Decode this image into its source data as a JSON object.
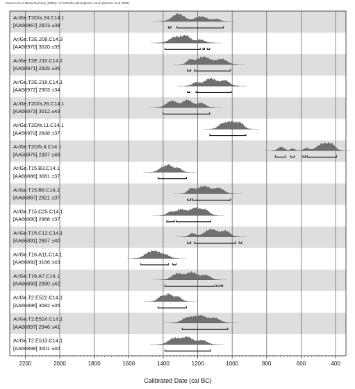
{
  "header": {
    "note": "OxCal v4.0.1 Bronk Ramsey (2006); r:5 IntCal04 atmospheric curve (Reimer et al 2004)"
  },
  "chart_data": {
    "type": "multiple-plot",
    "xlabel": "Calibrated Date (cal BC)",
    "xlim": [
      2290,
      340
    ],
    "x_direction": "decreasing",
    "x_ticks": [
      2200,
      2000,
      1800,
      1600,
      1400,
      1200,
      1000,
      800,
      600,
      400
    ],
    "grid": "vertical lines at every tick",
    "band_colors": [
      "#dedede",
      "#ffffff"
    ],
    "distribution_color": "#707070",
    "samples": [
      {
        "name": "Ar/Ge.T2D/a.24.C14.1",
        "lab": "[AA56967]",
        "date": "2973 ±38",
        "peaks": [
          [
            1312,
            34,
            1.0
          ],
          [
            1180,
            35,
            0.65
          ],
          [
            1090,
            20,
            0.3
          ]
        ],
        "ranges": [
          [
            1370,
            1355
          ],
          [
            1320,
            1050
          ]
        ]
      },
      {
        "name": "Ar/Ge.T2E.208.C14.3",
        "lab": "[AA56970]",
        "date": "3020 ±35",
        "peaks": [
          [
            1330,
            32,
            0.9
          ],
          [
            1265,
            25,
            1.0
          ],
          [
            1185,
            25,
            0.5
          ]
        ],
        "ranges": [
          [
            1390,
            1185
          ],
          [
            1170,
            1160
          ],
          [
            1145,
            1130
          ]
        ]
      },
      {
        "name": "Ar/Ge.T2E.210.C14.2",
        "lab": "[AA56971]",
        "date": "2925 ±35",
        "peaks": [
          [
            1245,
            18,
            0.55
          ],
          [
            1165,
            40,
            1.0
          ],
          [
            1060,
            30,
            0.7
          ]
        ],
        "ranges": [
          [
            1260,
            1240
          ],
          [
            1220,
            1010
          ]
        ]
      },
      {
        "name": "Ar/Ge.T2E.218.C14.1",
        "lab": "[AA56972]",
        "date": "2903 ±34",
        "peaks": [
          [
            1210,
            20,
            0.45
          ],
          [
            1125,
            35,
            1.0
          ],
          [
            1040,
            25,
            0.7
          ]
        ],
        "ranges": [
          [
            1260,
            1245
          ],
          [
            1210,
            1005
          ]
        ]
      },
      {
        "name": "Ar/Ge.T2D/a.26.C14.1",
        "lab": "[AA56973]",
        "date": "3012 ±43",
        "peaks": [
          [
            1350,
            30,
            0.9
          ],
          [
            1260,
            28,
            1.0
          ],
          [
            1180,
            25,
            0.6
          ]
        ],
        "ranges": [
          [
            1400,
            1130
          ]
        ]
      },
      {
        "name": "Ar/Ge.T2D/e.11.C14.1",
        "lab": "[AA56974]",
        "date": "2848 ±37",
        "peaks": [
          [
            1060,
            22,
            0.6
          ],
          [
            1005,
            30,
            1.0
          ],
          [
            950,
            20,
            0.7
          ]
        ],
        "ranges": [
          [
            1130,
            920
          ]
        ]
      },
      {
        "name": "Ar/Ge.T2D/b.4.C14.1",
        "lab": "[AA56975]",
        "date": "2397 ±40",
        "peaks": [
          [
            715,
            18,
            0.5
          ],
          [
            650,
            12,
            0.3
          ],
          [
            570,
            15,
            0.35
          ],
          [
            470,
            35,
            1.0
          ],
          [
            420,
            20,
            0.6
          ]
        ],
        "ranges": [
          [
            750,
            690
          ],
          [
            660,
            640
          ],
          [
            590,
            575
          ],
          [
            565,
            395
          ]
        ]
      },
      {
        "name": "Ar/Ge.T15.B3.C14.1",
        "lab": "[AA66886]",
        "date": "3081 ±37",
        "peaks": [
          [
            1405,
            22,
            0.7
          ],
          [
            1365,
            18,
            1.0
          ],
          [
            1315,
            20,
            0.7
          ]
        ],
        "ranges": [
          [
            1430,
            1265
          ]
        ]
      },
      {
        "name": "Ar/Ge.T15.B6.C14.2",
        "lab": "[AA66887]",
        "date": "2921 ±37",
        "peaks": [
          [
            1240,
            18,
            0.6
          ],
          [
            1165,
            38,
            1.0
          ],
          [
            1075,
            28,
            0.7
          ]
        ],
        "ranges": [
          [
            1260,
            1240
          ],
          [
            1230,
            1010
          ]
        ]
      },
      {
        "name": "Ar/Ge.T15.C25.C14.1",
        "lab": "[AA66890]",
        "date": "2988 ±37",
        "peaks": [
          [
            1360,
            18,
            0.4
          ],
          [
            1300,
            28,
            0.75
          ],
          [
            1210,
            35,
            1.0
          ],
          [
            1150,
            20,
            0.5
          ]
        ],
        "ranges": [
          [
            1380,
            1335
          ],
          [
            1325,
            1125
          ]
        ]
      },
      {
        "name": "Ar/Ge.T15.C12.C14.1",
        "lab": "[AA66891]",
        "date": "2897 ±40",
        "peaks": [
          [
            1230,
            18,
            0.45
          ],
          [
            1120,
            38,
            1.0
          ],
          [
            1035,
            25,
            0.7
          ]
        ],
        "ranges": [
          [
            1260,
            1240
          ],
          [
            1220,
            980
          ],
          [
            960,
            945
          ]
        ]
      },
      {
        "name": "Ar/Ge.T16.A11.C14.1",
        "lab": "[AA66892]",
        "date": "3166 ±43",
        "peaks": [
          [
            1490,
            25,
            0.7
          ],
          [
            1445,
            25,
            1.0
          ],
          [
            1390,
            25,
            0.6
          ]
        ],
        "ranges": [
          [
            1530,
            1370
          ],
          [
            1345,
            1325
          ]
        ]
      },
      {
        "name": "Ar/Ge.T16.A7.C14.1",
        "lab": "[AA66893]",
        "date": "2990 ±42",
        "peaks": [
          [
            1320,
            30,
            0.8
          ],
          [
            1235,
            35,
            1.0
          ],
          [
            1150,
            25,
            0.6
          ]
        ],
        "ranges": [
          [
            1390,
            1100
          ],
          [
            1090,
            1075
          ],
          [
            1065,
            1055
          ]
        ]
      },
      {
        "name": "Ar/Ge.T2.E522.C14.1",
        "lab": "[AA66896]",
        "date": "3082 ±35",
        "peaks": [
          [
            1410,
            20,
            0.75
          ],
          [
            1365,
            18,
            1.0
          ],
          [
            1315,
            20,
            0.7
          ]
        ],
        "ranges": [
          [
            1430,
            1265
          ]
        ]
      },
      {
        "name": "Ar/Ge.T2.E524.C14.1",
        "lab": "[AA66897]",
        "date": "2946 ±41",
        "peaks": [
          [
            1260,
            30,
            0.7
          ],
          [
            1185,
            35,
            1.0
          ],
          [
            1100,
            30,
            0.65
          ]
        ],
        "ranges": [
          [
            1290,
            1025
          ]
        ]
      },
      {
        "name": "Ar/Ge.T2.E513.C14.1",
        "lab": "[AA66898]",
        "date": "3001 ±40",
        "peaks": [
          [
            1340,
            30,
            0.8
          ],
          [
            1260,
            35,
            1.0
          ],
          [
            1170,
            25,
            0.55
          ]
        ],
        "ranges": [
          [
            1390,
            1125
          ]
        ]
      }
    ]
  }
}
